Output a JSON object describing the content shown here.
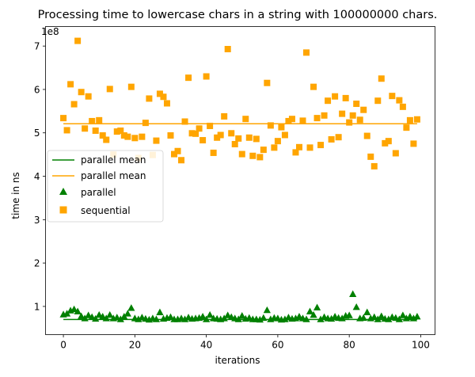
{
  "chart_data": {
    "type": "scatter",
    "title": "Processing time to lowercase chars in a string with 100000000 chars.",
    "xlabel": "iterations",
    "ylabel": "time in ns",
    "y_offset_label": "1e8",
    "y_scale": 100000000,
    "xlim": [
      -5,
      104
    ],
    "ylim": [
      35000000,
      745000000
    ],
    "xticks": [
      0,
      20,
      40,
      60,
      80,
      100
    ],
    "yticks": [
      100000000,
      200000000,
      300000000,
      400000000,
      500000000,
      600000000,
      700000000
    ],
    "ytick_labels": [
      "1",
      "2",
      "3",
      "4",
      "5",
      "6",
      "7"
    ],
    "colors": {
      "parallel": "#008000",
      "sequential": "#ffa500"
    },
    "legend": {
      "location": "center-left",
      "entries": [
        "parallel mean",
        "parallel mean",
        "parallel",
        "sequential"
      ]
    },
    "mean_lines": [
      {
        "name": "parallel mean",
        "series": "parallel",
        "value": 70000000
      },
      {
        "name": "parallel mean",
        "series": "sequential",
        "value": 521000000
      }
    ],
    "series": [
      {
        "name": "parallel",
        "marker": "triangle",
        "x": [
          0,
          1,
          2,
          3,
          4,
          5,
          6,
          7,
          8,
          9,
          10,
          11,
          12,
          13,
          14,
          15,
          16,
          17,
          18,
          19,
          20,
          21,
          22,
          23,
          24,
          25,
          26,
          27,
          28,
          29,
          30,
          31,
          32,
          33,
          34,
          35,
          36,
          37,
          38,
          39,
          40,
          41,
          42,
          43,
          44,
          45,
          46,
          47,
          48,
          49,
          50,
          51,
          52,
          53,
          54,
          55,
          56,
          57,
          58,
          59,
          60,
          61,
          62,
          63,
          64,
          65,
          66,
          67,
          68,
          69,
          70,
          71,
          72,
          73,
          74,
          75,
          76,
          77,
          78,
          79,
          80,
          81,
          82,
          83,
          84,
          85,
          86,
          87,
          88,
          89,
          90,
          91,
          92,
          93,
          94,
          95,
          96,
          97,
          98,
          99
        ],
        "values": [
          81000000,
          83000000,
          90000000,
          93000000,
          88000000,
          77000000,
          72000000,
          79000000,
          75000000,
          71000000,
          80000000,
          76000000,
          72000000,
          80000000,
          72000000,
          74000000,
          70000000,
          76000000,
          83000000,
          96000000,
          72000000,
          70000000,
          74000000,
          71000000,
          69000000,
          72000000,
          70000000,
          86000000,
          71000000,
          73000000,
          75000000,
          70000000,
          70000000,
          72000000,
          70000000,
          74000000,
          71000000,
          72000000,
          73000000,
          76000000,
          70000000,
          80000000,
          72000000,
          71000000,
          70000000,
          72000000,
          79000000,
          75000000,
          72000000,
          70000000,
          78000000,
          71000000,
          73000000,
          70000000,
          70000000,
          69000000,
          73000000,
          91000000,
          70000000,
          73000000,
          72000000,
          69000000,
          70000000,
          74000000,
          71000000,
          72000000,
          76000000,
          72000000,
          70000000,
          88000000,
          80000000,
          97000000,
          70000000,
          75000000,
          72000000,
          71000000,
          76000000,
          73000000,
          72000000,
          78000000,
          79000000,
          128000000,
          98000000,
          72000000,
          73000000,
          86000000,
          72000000,
          75000000,
          70000000,
          77000000,
          71000000,
          70000000,
          75000000,
          73000000,
          70000000,
          79000000,
          72000000,
          76000000,
          72000000,
          76000000
        ]
      },
      {
        "name": "sequential",
        "marker": "square",
        "x": [
          0,
          1,
          2,
          3,
          4,
          5,
          6,
          7,
          8,
          9,
          10,
          11,
          12,
          13,
          14,
          15,
          16,
          17,
          18,
          19,
          20,
          21,
          22,
          23,
          24,
          25,
          26,
          27,
          28,
          29,
          30,
          31,
          32,
          33,
          34,
          35,
          36,
          37,
          38,
          39,
          40,
          41,
          42,
          43,
          44,
          45,
          46,
          47,
          48,
          49,
          50,
          51,
          52,
          53,
          54,
          55,
          56,
          57,
          58,
          59,
          60,
          61,
          62,
          63,
          64,
          65,
          66,
          67,
          68,
          69,
          70,
          71,
          72,
          73,
          74,
          75,
          76,
          77,
          78,
          79,
          80,
          81,
          82,
          83,
          84,
          85,
          86,
          87,
          88,
          89,
          90,
          91,
          92,
          93,
          94,
          95,
          96,
          97,
          98,
          99
        ],
        "values": [
          534000000,
          506000000,
          612000000,
          566000000,
          712000000,
          594000000,
          510000000,
          584000000,
          527000000,
          505000000,
          529000000,
          494000000,
          484000000,
          601000000,
          450000000,
          503000000,
          505000000,
          494000000,
          491000000,
          606000000,
          488000000,
          442000000,
          491000000,
          523000000,
          579000000,
          449000000,
          482000000,
          590000000,
          583000000,
          568000000,
          494000000,
          451000000,
          458000000,
          437000000,
          526000000,
          627000000,
          499000000,
          498000000,
          510000000,
          483000000,
          630000000,
          516000000,
          454000000,
          489000000,
          495000000,
          538000000,
          693000000,
          499000000,
          474000000,
          487000000,
          451000000,
          532000000,
          489000000,
          447000000,
          486000000,
          444000000,
          461000000,
          615000000,
          517000000,
          466000000,
          481000000,
          513000000,
          495000000,
          527000000,
          532000000,
          455000000,
          467000000,
          528000000,
          685000000,
          466000000,
          606000000,
          534000000,
          472000000,
          540000000,
          574000000,
          485000000,
          584000000,
          490000000,
          544000000,
          580000000,
          524000000,
          540000000,
          567000000,
          530000000,
          553000000,
          493000000,
          445000000,
          423000000,
          574000000,
          625000000,
          476000000,
          481000000,
          585000000,
          453000000,
          575000000,
          560000000,
          512000000,
          529000000,
          475000000,
          531000000
        ]
      }
    ]
  }
}
